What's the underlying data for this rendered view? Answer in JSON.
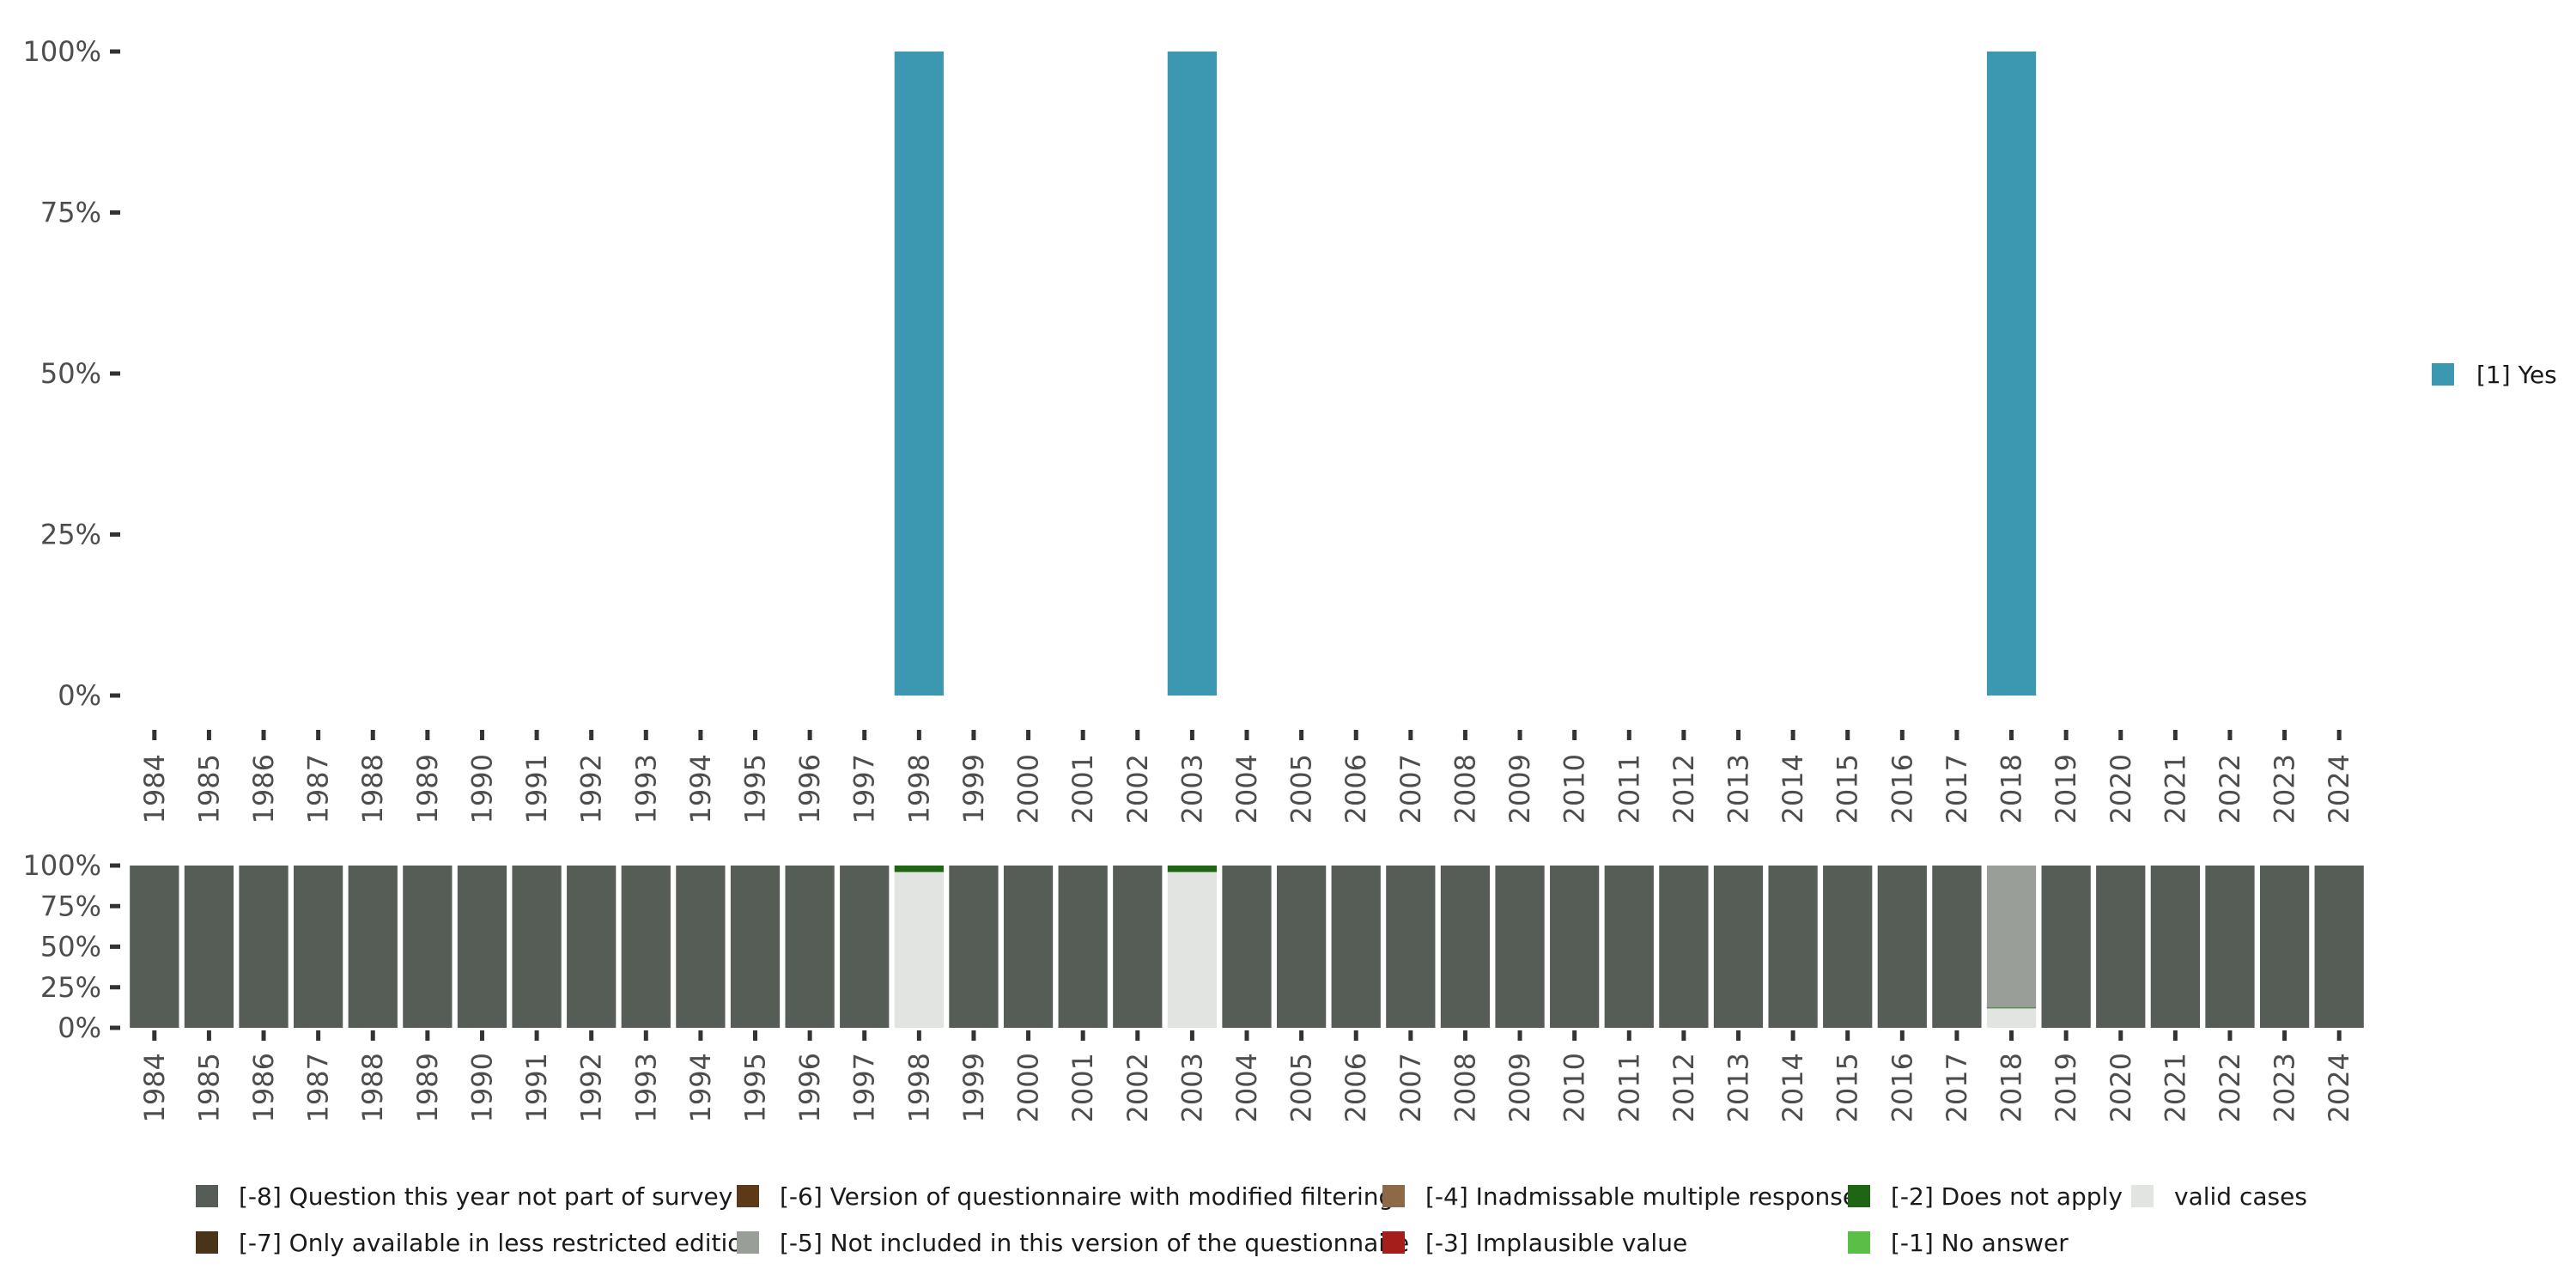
{
  "chart_data": [
    {
      "type": "bar",
      "stacked": true,
      "x": [
        "1984",
        "1985",
        "1986",
        "1987",
        "1988",
        "1989",
        "1990",
        "1991",
        "1992",
        "1993",
        "1994",
        "1995",
        "1996",
        "1997",
        "1998",
        "1999",
        "2000",
        "2001",
        "2002",
        "2003",
        "2004",
        "2005",
        "2006",
        "2007",
        "2008",
        "2009",
        "2010",
        "2011",
        "2012",
        "2013",
        "2014",
        "2015",
        "2016",
        "2017",
        "2018",
        "2019",
        "2020",
        "2021",
        "2022",
        "2023",
        "2024"
      ],
      "y_ticks": [
        "0%",
        "25%",
        "50%",
        "75%",
        "100%"
      ],
      "ylim": [
        0,
        100
      ],
      "series": [
        {
          "name": "[1] Yes",
          "color": "#3c98b1",
          "points": [
            {
              "x": "1998",
              "value": 100
            },
            {
              "x": "2003",
              "value": 100
            },
            {
              "x": "2018",
              "value": 100
            }
          ]
        }
      ],
      "legend": {
        "position": "right",
        "entries": [
          "[1] Yes"
        ]
      }
    },
    {
      "type": "bar",
      "stacked": true,
      "x": [
        "1984",
        "1985",
        "1986",
        "1987",
        "1988",
        "1989",
        "1990",
        "1991",
        "1992",
        "1993",
        "1994",
        "1995",
        "1996",
        "1997",
        "1998",
        "1999",
        "2000",
        "2001",
        "2002",
        "2003",
        "2004",
        "2005",
        "2006",
        "2007",
        "2008",
        "2009",
        "2010",
        "2011",
        "2012",
        "2013",
        "2014",
        "2015",
        "2016",
        "2017",
        "2018",
        "2019",
        "2020",
        "2021",
        "2022",
        "2023",
        "2024"
      ],
      "y_ticks": [
        "0%",
        "25%",
        "50%",
        "75%",
        "100%"
      ],
      "ylim": [
        0,
        100
      ],
      "series": [
        {
          "name": "valid cases",
          "color": "#e1e4e0",
          "values": {
            "1998": 96,
            "2003": 96,
            "2018": 12
          }
        },
        {
          "name": "[-2] Does not apply",
          "color": "#1e6613",
          "values": {
            "1998": 4,
            "2003": 4,
            "2018": 0.5
          }
        },
        {
          "name": "[-5] Not included in this version of the questionnaire",
          "color": "#999e98",
          "values": {
            "2018": 87.5
          }
        },
        {
          "name": "[-8] Question this year not part of survey",
          "color": "#565c56",
          "default_value": 100,
          "except": [
            "1998",
            "2003",
            "2018"
          ]
        }
      ],
      "legend": {
        "position": "bottom",
        "entries": [
          {
            "label": "[-8] Question this year not part of survey",
            "color": "#565c56"
          },
          {
            "label": "[-7] Only available in less restricted edition",
            "color": "#4a3419"
          },
          {
            "label": "[-6] Version of questionnaire with modified filtering",
            "color": "#5c3a17"
          },
          {
            "label": "[-5] Not included in this version of the questionnaire",
            "color": "#999e98"
          },
          {
            "label": "[-4] Inadmissable multiple response",
            "color": "#8c6a48"
          },
          {
            "label": "[-3] Implausible value",
            "color": "#a51e1e"
          },
          {
            "label": "[-2] Does not apply",
            "color": "#1e6613"
          },
          {
            "label": "[-1] No answer",
            "color": "#5abf46"
          },
          {
            "label": "valid cases",
            "color": "#e1e4e0"
          }
        ]
      }
    }
  ]
}
